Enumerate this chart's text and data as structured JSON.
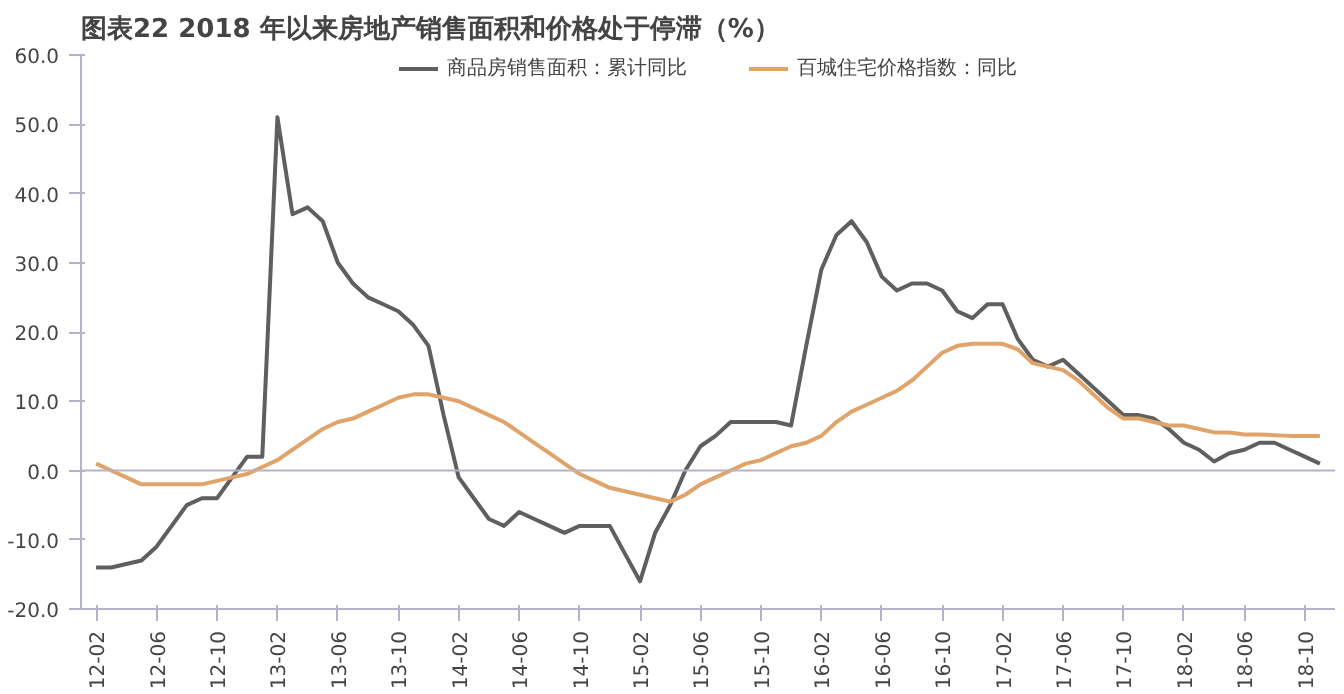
{
  "chart_data": {
    "type": "line",
    "title": "图表22    2018 年以来房地产销售面积和价格处于停滞（%）",
    "categories": [
      "12-02",
      null,
      null,
      null,
      "12-06",
      null,
      null,
      null,
      "12-10",
      null,
      null,
      null,
      "13-02",
      null,
      null,
      null,
      "13-06",
      null,
      null,
      null,
      "13-10",
      null,
      null,
      null,
      "14-02",
      null,
      null,
      null,
      "14-06",
      null,
      null,
      null,
      "14-10",
      null,
      null,
      null,
      "15-02",
      null,
      null,
      null,
      "15-06",
      null,
      null,
      null,
      "15-10",
      null,
      null,
      null,
      "16-02",
      null,
      null,
      null,
      "16-06",
      null,
      null,
      null,
      "16-10",
      null,
      null,
      null,
      "17-02",
      null,
      null,
      null,
      "17-06",
      null,
      null,
      null,
      "17-10",
      null,
      null,
      null,
      "18-02",
      null,
      null,
      null,
      "18-06",
      null,
      null,
      null,
      "18-10",
      null
    ],
    "series": [
      {
        "name": "商品房销售面积：累计同比",
        "color": "#5f5f5f",
        "values": [
          -14,
          -14,
          -13.5,
          -13,
          -11,
          -8,
          -5,
          -4,
          -4,
          -1,
          2,
          2,
          51,
          37,
          38,
          36,
          30,
          27,
          25,
          24,
          23,
          21,
          18,
          8,
          -1,
          -4,
          -7,
          -8,
          -6,
          -7,
          -8,
          -9,
          -8,
          -8,
          -8,
          -12,
          -16,
          -9,
          -5,
          0,
          3.5,
          5,
          7,
          7,
          7,
          7,
          6.5,
          18,
          29,
          34,
          36,
          33,
          28,
          26,
          27,
          27,
          26,
          23,
          22,
          24,
          24,
          19,
          16,
          15,
          16,
          14,
          12,
          10,
          8,
          8,
          7.5,
          6,
          4,
          3,
          1.3,
          2.5,
          3,
          4,
          4,
          3,
          2,
          1
        ]
      },
      {
        "name": "百城住宅价格指数：同比",
        "color": "#e0a36a",
        "values": [
          1,
          0,
          -1,
          -2,
          -2,
          -2,
          -2,
          -2,
          -1.5,
          -1,
          -0.5,
          0.5,
          1.5,
          3,
          4.5,
          6,
          7,
          7.5,
          8.5,
          9.5,
          10.5,
          11,
          11,
          10.5,
          10,
          9,
          8,
          7,
          5.5,
          4,
          2.5,
          1,
          -0.5,
          -1.5,
          -2.5,
          -3,
          -3.5,
          -4,
          -4.5,
          -3.5,
          -2,
          -1,
          0,
          1,
          1.5,
          2.5,
          3.5,
          4,
          5,
          7,
          8.5,
          9.5,
          10.5,
          11.5,
          13,
          15,
          17,
          18,
          18.3,
          18.3,
          18.3,
          17.5,
          15.5,
          15,
          14.5,
          13,
          11,
          9,
          7.5,
          7.5,
          7,
          6.5,
          6.5,
          6,
          5.5,
          5.5,
          5.2,
          5.2,
          5.1,
          5,
          5,
          5
        ]
      }
    ],
    "ylim": [
      -20,
      60
    ],
    "yticks": [
      {
        "value": -20,
        "label": "-20.0"
      },
      {
        "value": -10,
        "label": "-10.0"
      },
      {
        "value": 0,
        "label": "0.0"
      },
      {
        "value": 10,
        "label": "10.0"
      },
      {
        "value": 20,
        "label": "20.0"
      },
      {
        "value": 30,
        "label": "30.0"
      },
      {
        "value": 40,
        "label": "40.0"
      },
      {
        "value": 50,
        "label": "50.0"
      },
      {
        "value": 60,
        "label": "60.0"
      }
    ],
    "ref_lines": [
      {
        "axis": "y",
        "value": 0,
        "color": "#b4b4c8"
      }
    ],
    "grid": false,
    "legend": "top",
    "line_style": "solid"
  }
}
